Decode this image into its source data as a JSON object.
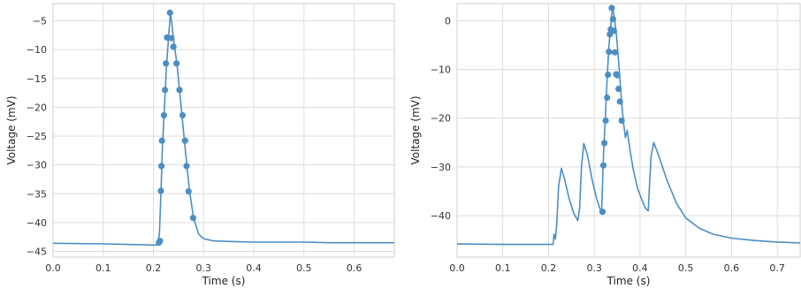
{
  "chart_data": [
    {
      "type": "line",
      "xlabel": "Time (s)",
      "ylabel": "Voltage (mV)",
      "xlim": [
        0,
        0.68
      ],
      "ylim": [
        -46,
        -2
      ],
      "xticks": [
        0.0,
        0.1,
        0.2,
        0.3,
        0.4,
        0.5,
        0.6
      ],
      "xtick_labels": [
        "0.0",
        "0.1",
        "0.2",
        "0.3",
        "0.4",
        "0.5",
        "0.6"
      ],
      "yticks": [
        -45,
        -40,
        -35,
        -30,
        -25,
        -20,
        -15,
        -10,
        -5
      ],
      "ytick_labels": [
        "−45",
        "−40",
        "−35",
        "−30",
        "−25",
        "−20",
        "−15",
        "−10",
        "−5"
      ],
      "grid": true,
      "color": "#4c8ec4",
      "series": [
        {
          "line": [
            [
              0,
              -43.6
            ],
            [
              0.1,
              -43.7
            ],
            [
              0.2,
              -43.9
            ],
            [
              0.208,
              -43.9
            ],
            [
              0.212,
              -42.0
            ],
            [
              0.215,
              -35
            ],
            [
              0.218,
              -27
            ],
            [
              0.222,
              -20
            ],
            [
              0.226,
              -13
            ],
            [
              0.23,
              -8
            ],
            [
              0.234,
              -3.6
            ],
            [
              0.238,
              -6.5
            ],
            [
              0.242,
              -9.5
            ],
            [
              0.247,
              -12.5
            ],
            [
              0.252,
              -17
            ],
            [
              0.257,
              -21.5
            ],
            [
              0.262,
              -26
            ],
            [
              0.267,
              -30.5
            ],
            [
              0.272,
              -34.5
            ],
            [
              0.28,
              -39.2
            ],
            [
              0.29,
              -42.0
            ],
            [
              0.3,
              -42.8
            ],
            [
              0.32,
              -43.2
            ],
            [
              0.36,
              -43.3
            ],
            [
              0.4,
              -43.4
            ],
            [
              0.45,
              -43.4
            ],
            [
              0.5,
              -43.4
            ],
            [
              0.55,
              -43.5
            ],
            [
              0.6,
              -43.5
            ],
            [
              0.65,
              -43.5
            ],
            [
              0.68,
              -43.5
            ]
          ],
          "points": [
            [
              0.211,
              -43.5
            ],
            [
              0.213,
              -43.2
            ],
            [
              0.215,
              -34.5
            ],
            [
              0.216,
              -30.2
            ],
            [
              0.217,
              -25.8
            ],
            [
              0.221,
              -21.4
            ],
            [
              0.223,
              -17.0
            ],
            [
              0.225,
              -12.4
            ],
            [
              0.227,
              -7.9
            ],
            [
              0.233,
              -3.6
            ],
            [
              0.236,
              -8.0
            ],
            [
              0.24,
              -9.5
            ],
            [
              0.246,
              -12.4
            ],
            [
              0.252,
              -17.0
            ],
            [
              0.258,
              -21.4
            ],
            [
              0.263,
              -25.8
            ],
            [
              0.266,
              -30.2
            ],
            [
              0.27,
              -34.6
            ],
            [
              0.279,
              -39.2
            ]
          ]
        }
      ]
    },
    {
      "type": "line",
      "xlabel": "Time (s)",
      "ylabel": "Voltage (mV)",
      "xlim": [
        0,
        0.75
      ],
      "ylim": [
        -48.5,
        3.5
      ],
      "xticks": [
        0.0,
        0.1,
        0.2,
        0.3,
        0.4,
        0.5,
        0.6,
        0.7
      ],
      "xtick_labels": [
        "0.0",
        "0.1",
        "0.2",
        "0.3",
        "0.4",
        "0.5",
        "0.6",
        "0.7"
      ],
      "yticks": [
        -40,
        -30,
        -20,
        -10,
        0
      ],
      "ytick_labels": [
        "−40",
        "−30",
        "−20",
        "−10",
        "0"
      ],
      "grid": true,
      "color": "#4c8ec4",
      "series": [
        {
          "line": [
            [
              0,
              -45.8
            ],
            [
              0.1,
              -45.9
            ],
            [
              0.21,
              -45.9
            ],
            [
              0.212,
              -43.8
            ],
            [
              0.215,
              -44.8
            ],
            [
              0.218,
              -41.5
            ],
            [
              0.222,
              -34
            ],
            [
              0.228,
              -30.3
            ],
            [
              0.235,
              -32.5
            ],
            [
              0.245,
              -36.5
            ],
            [
              0.255,
              -39.5
            ],
            [
              0.264,
              -41.0
            ],
            [
              0.268,
              -38.5
            ],
            [
              0.272,
              -30
            ],
            [
              0.277,
              -25.2
            ],
            [
              0.285,
              -27.5
            ],
            [
              0.295,
              -32.5
            ],
            [
              0.305,
              -36.5
            ],
            [
              0.312,
              -38.5
            ],
            [
              0.316,
              -39.2
            ],
            [
              0.32,
              -28
            ],
            [
              0.324,
              -20
            ],
            [
              0.328,
              -12
            ],
            [
              0.332,
              -5
            ],
            [
              0.336,
              -1
            ],
            [
              0.34,
              2.8
            ],
            [
              0.344,
              0.5
            ],
            [
              0.348,
              -2.5
            ],
            [
              0.352,
              -7
            ],
            [
              0.356,
              -12
            ],
            [
              0.36,
              -17
            ],
            [
              0.364,
              -21
            ],
            [
              0.368,
              -24
            ],
            [
              0.372,
              -22.5
            ],
            [
              0.378,
              -26.5
            ],
            [
              0.385,
              -30.5
            ],
            [
              0.395,
              -34.5
            ],
            [
              0.405,
              -37.0
            ],
            [
              0.412,
              -38.5
            ],
            [
              0.418,
              -39.0
            ],
            [
              0.42,
              -35
            ],
            [
              0.424,
              -28
            ],
            [
              0.43,
              -25.0
            ],
            [
              0.44,
              -27.5
            ],
            [
              0.46,
              -33
            ],
            [
              0.48,
              -37.5
            ],
            [
              0.5,
              -40.5
            ],
            [
              0.53,
              -42.6
            ],
            [
              0.56,
              -43.8
            ],
            [
              0.6,
              -44.6
            ],
            [
              0.65,
              -45.1
            ],
            [
              0.7,
              -45.4
            ],
            [
              0.75,
              -45.6
            ]
          ],
          "points": [
            [
              0.318,
              -39.2
            ],
            [
              0.32,
              -29.7
            ],
            [
              0.322,
              -25.1
            ],
            [
              0.325,
              -20.5
            ],
            [
              0.328,
              -15.8
            ],
            [
              0.33,
              -11.1
            ],
            [
              0.332,
              -6.4
            ],
            [
              0.334,
              -2.8
            ],
            [
              0.336,
              -1.8
            ],
            [
              0.338,
              2.6
            ],
            [
              0.341,
              0.3
            ],
            [
              0.343,
              -2.1
            ],
            [
              0.345,
              -6.5
            ],
            [
              0.348,
              -11.0
            ],
            [
              0.35,
              -11.2
            ],
            [
              0.353,
              -14.0
            ],
            [
              0.356,
              -16.6
            ],
            [
              0.36,
              -20.5
            ]
          ]
        }
      ]
    }
  ]
}
